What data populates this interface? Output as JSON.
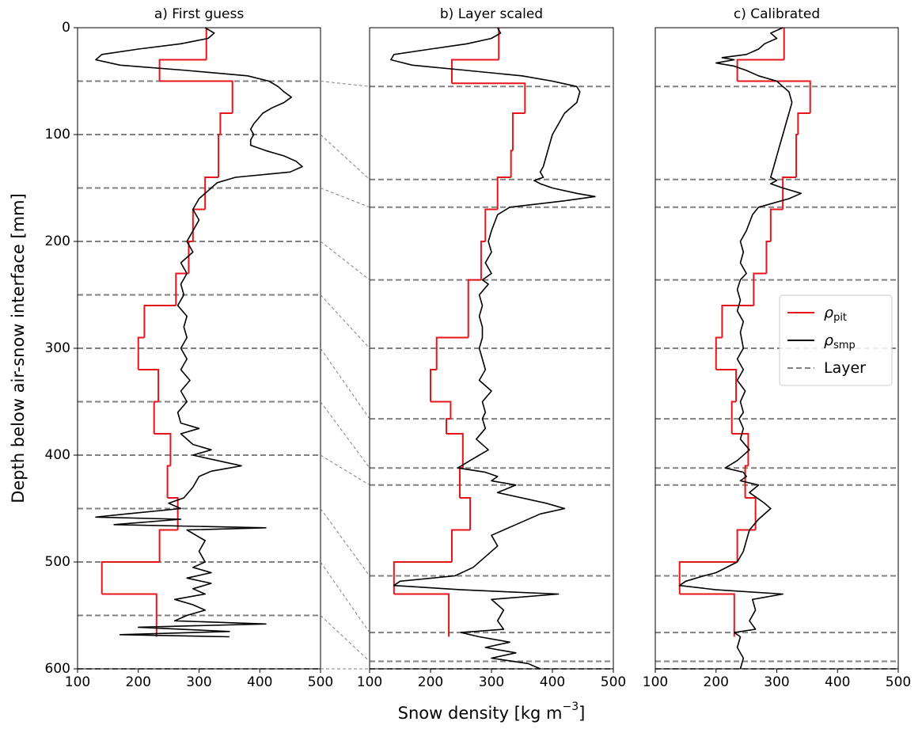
{
  "chart_data": [
    {
      "type": "line",
      "title": "a) First guess",
      "ylabel": "Depth below air-snow interface [mm]",
      "xlim": [
        100,
        500
      ],
      "xticks": [
        100,
        200,
        300,
        400,
        500
      ],
      "ylim": [
        600,
        0
      ],
      "yticks": [
        0,
        100,
        200,
        300,
        400,
        500,
        600
      ],
      "series": [
        {
          "name": "ρ",
          "name_sub": "pit",
          "color": "#e8141c",
          "step": true,
          "x": [
            312,
            235,
            355,
            335,
            332,
            310,
            290,
            283,
            262,
            210,
            200,
            233,
            226,
            253,
            248,
            265,
            235,
            140,
            230
          ],
          "ybins": [
            0,
            30,
            50,
            80,
            100,
            140,
            170,
            200,
            230,
            260,
            290,
            320,
            350,
            380,
            410,
            440,
            470,
            500,
            530,
            570
          ]
        },
        {
          "name": "ρ",
          "name_sub": "smp",
          "color": "#000000",
          "x": [
            310,
            325,
            315,
            270,
            200,
            140,
            130,
            170,
            280,
            380,
            415,
            430,
            440,
            452,
            440,
            420,
            405,
            390,
            385,
            390,
            385,
            385,
            410,
            440,
            460,
            470,
            450,
            360,
            330,
            320,
            310,
            300,
            290,
            300,
            290,
            280,
            290,
            270,
            280,
            270,
            275,
            265,
            280,
            275,
            280,
            270,
            280,
            270,
            285,
            270,
            280,
            265,
            270,
            300,
            270,
            290,
            320,
            290,
            330,
            370,
            320,
            300,
            290,
            275,
            250,
            270,
            180,
            130,
            270,
            160,
            410,
            280,
            310,
            300,
            310,
            290,
            320,
            280,
            320,
            290,
            310,
            260,
            290,
            310,
            280,
            260,
            410,
            200,
            350,
            170,
            350
          ],
          "y": [
            0,
            5,
            10,
            15,
            20,
            25,
            30,
            35,
            40,
            45,
            50,
            55,
            60,
            65,
            70,
            75,
            80,
            90,
            95,
            100,
            105,
            110,
            115,
            120,
            125,
            130,
            135,
            140,
            145,
            150,
            155,
            160,
            170,
            180,
            190,
            200,
            210,
            220,
            230,
            240,
            250,
            260,
            270,
            280,
            290,
            300,
            310,
            320,
            330,
            340,
            350,
            360,
            370,
            375,
            380,
            390,
            395,
            400,
            405,
            410,
            415,
            420,
            430,
            440,
            445,
            450,
            455,
            458,
            460,
            465,
            468,
            470,
            480,
            490,
            500,
            505,
            510,
            515,
            520,
            525,
            530,
            535,
            540,
            545,
            550,
            555,
            558,
            561,
            565,
            568,
            570
          ]
        }
      ],
      "layers": {
        "name": "Layer",
        "color": "#808080",
        "depths": [
          50,
          100,
          150,
          200,
          250,
          300,
          350,
          400,
          450,
          500,
          550,
          600
        ]
      }
    },
    {
      "type": "line",
      "title": "b) Layer scaled",
      "xlabel": "Snow density [kg m",
      "xlabel_sup": "−3",
      "xlabel_end": "]",
      "xlim": [
        100,
        500
      ],
      "xticks": [
        100,
        200,
        300,
        400,
        500
      ],
      "ylim": [
        600,
        0
      ],
      "series": [
        {
          "name": "ρ",
          "name_sub": "pit",
          "color": "#e8141c",
          "step": true,
          "x": [
            312,
            235,
            355,
            335,
            332,
            310,
            290,
            283,
            262,
            210,
            200,
            233,
            226,
            253,
            248,
            265,
            235,
            140,
            230
          ],
          "ybins": [
            0,
            30,
            52,
            80,
            115,
            140,
            170,
            200,
            236,
            290,
            320,
            350,
            366,
            380,
            412,
            440,
            470,
            500,
            530,
            570
          ]
        },
        {
          "name": "ρ",
          "name_sub": "smp",
          "color": "#000000",
          "x": [
            310,
            315,
            300,
            260,
            200,
            140,
            135,
            170,
            260,
            350,
            400,
            440,
            445,
            440,
            420,
            410,
            400,
            395,
            390,
            385,
            380,
            385,
            370,
            380,
            400,
            440,
            470,
            420,
            330,
            310,
            300,
            295,
            300,
            290,
            300,
            285,
            295,
            280,
            285,
            280,
            285,
            285,
            280,
            285,
            290,
            280,
            300,
            285,
            290,
            285,
            290,
            275,
            295,
            265,
            245,
            290,
            310,
            300,
            340,
            310,
            390,
            420,
            380,
            340,
            300,
            310,
            290,
            270,
            240,
            150,
            140,
            250,
            410,
            300,
            320,
            310,
            320,
            250,
            280,
            330,
            290,
            340,
            300,
            360,
            380
          ],
          "y": [
            0,
            5,
            10,
            15,
            20,
            25,
            30,
            35,
            40,
            45,
            50,
            55,
            60,
            70,
            80,
            90,
            100,
            110,
            120,
            130,
            135,
            140,
            143,
            146,
            150,
            155,
            158,
            162,
            168,
            175,
            190,
            200,
            210,
            220,
            230,
            236,
            240,
            250,
            260,
            270,
            280,
            290,
            300,
            310,
            320,
            330,
            340,
            350,
            360,
            366,
            375,
            385,
            395,
            405,
            412,
            416,
            420,
            424,
            428,
            435,
            445,
            450,
            455,
            465,
            475,
            485,
            495,
            505,
            513,
            518,
            522,
            526,
            530,
            535,
            545,
            555,
            563,
            566,
            570,
            575,
            580,
            585,
            590,
            595,
            600
          ]
        }
      ],
      "layers": {
        "name": "Layer",
        "color": "#808080",
        "depths": [
          55,
          142,
          168,
          236,
          300,
          366,
          412,
          428,
          513,
          566,
          593,
          600
        ]
      }
    },
    {
      "type": "line",
      "title": "c) Calibrated",
      "legend": "center right",
      "xlim": [
        100,
        500
      ],
      "xticks": [
        100,
        200,
        300,
        400,
        500
      ],
      "ylim": [
        600,
        0
      ],
      "series": [
        {
          "name": "ρ",
          "name_sub": "pit",
          "color": "#e8141c",
          "step": true,
          "x": [
            312,
            235,
            355,
            335,
            332,
            310,
            290,
            283,
            262,
            210,
            200,
            233,
            226,
            253,
            248,
            265,
            235,
            140,
            230
          ],
          "ybins": [
            0,
            30,
            50,
            80,
            100,
            140,
            170,
            200,
            230,
            260,
            290,
            320,
            350,
            380,
            410,
            440,
            470,
            500,
            530,
            570
          ]
        },
        {
          "name": "ρ",
          "name_sub": "smp",
          "color": "#000000",
          "x": [
            310,
            290,
            300,
            280,
            270,
            250,
            210,
            230,
            200,
            230,
            250,
            270,
            300,
            310,
            320,
            325,
            320,
            315,
            310,
            305,
            300,
            295,
            290,
            300,
            290,
            310,
            340,
            320,
            270,
            260,
            250,
            240,
            245,
            240,
            250,
            240,
            235,
            240,
            235,
            245,
            240,
            245,
            235,
            245,
            235,
            248,
            240,
            245,
            238,
            245,
            240,
            255,
            235,
            215,
            245,
            250,
            240,
            270,
            255,
            280,
            290,
            270,
            255,
            250,
            245,
            235,
            200,
            180,
            150,
            140,
            200,
            310,
            260,
            265,
            255,
            265,
            230,
            240,
            235,
            245,
            240
          ],
          "y": [
            0,
            5,
            10,
            15,
            20,
            25,
            28,
            30,
            33,
            36,
            40,
            45,
            50,
            55,
            60,
            70,
            80,
            90,
            100,
            110,
            120,
            130,
            140,
            143,
            146,
            150,
            155,
            160,
            168,
            175,
            190,
            200,
            210,
            220,
            230,
            236,
            245,
            255,
            265,
            275,
            285,
            300,
            310,
            320,
            330,
            340,
            350,
            360,
            366,
            375,
            385,
            395,
            405,
            412,
            416,
            420,
            424,
            428,
            435,
            445,
            450,
            460,
            470,
            480,
            490,
            500,
            510,
            513,
            518,
            522,
            526,
            530,
            535,
            545,
            555,
            563,
            566,
            570,
            580,
            590,
            600
          ]
        }
      ],
      "layers": {
        "name": "Layer",
        "color": "#808080",
        "depths": [
          55,
          142,
          168,
          236,
          300,
          366,
          412,
          428,
          513,
          566,
          593,
          600
        ]
      }
    }
  ]
}
